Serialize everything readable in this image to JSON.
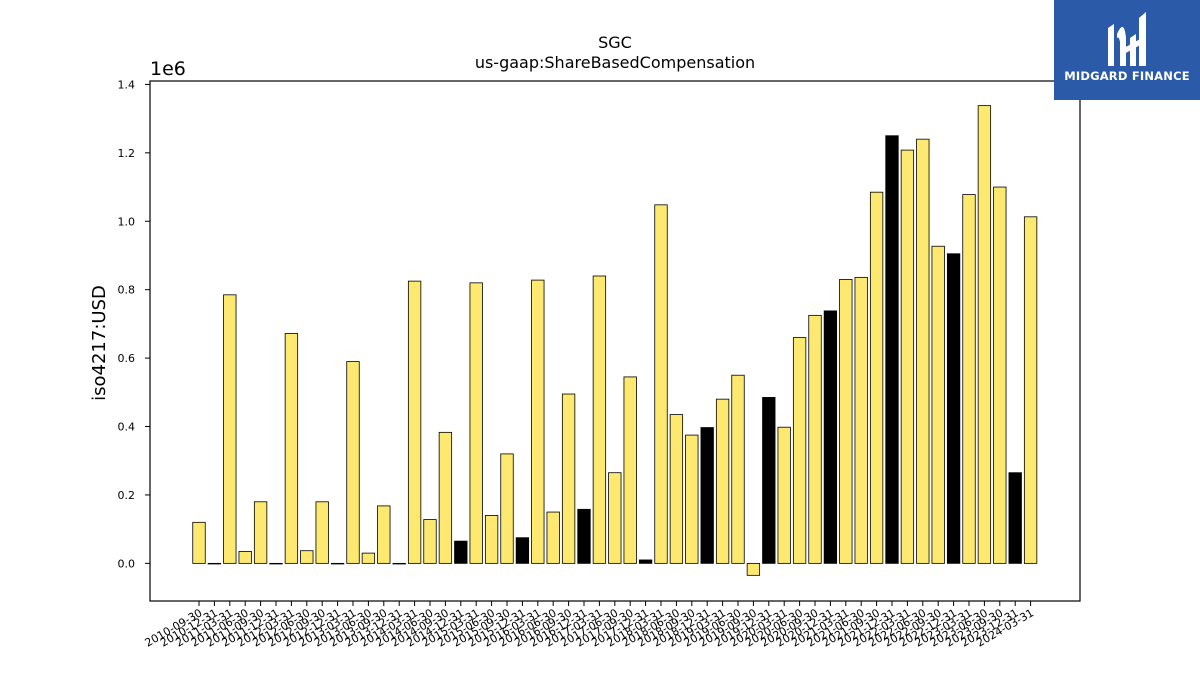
{
  "brand": {
    "name": "MIDGARD FINANCE",
    "bg_color": "#2a5aa8"
  },
  "chart_data": {
    "type": "bar",
    "title": "SGC",
    "subtitle": "us-gaap:ShareBasedCompensation",
    "ylabel": "iso4217:USD",
    "xlabel": "",
    "y_offset_label": "1e6",
    "ylim": [
      -0.11,
      1.41
    ],
    "yticks": [
      "0.0",
      "0.2",
      "0.4",
      "0.6",
      "0.8",
      "1.0",
      "1.2",
      "1.4"
    ],
    "ytick_values": [
      0.0,
      0.2,
      0.4,
      0.6,
      0.8,
      1.0,
      1.2,
      1.4
    ],
    "y_scale_multiplier": 1000000,
    "grid": false,
    "colors": {
      "annual": "#fde970",
      "quarterly": "#000000",
      "edge": "#000000"
    },
    "categories": [
      "2010-09-30",
      "2010-12-31",
      "2011-03-31",
      "2011-06-30",
      "2011-09-30",
      "2011-12-31",
      "2012-03-31",
      "2012-06-30",
      "2012-09-30",
      "2012-12-31",
      "2013-03-31",
      "2013-06-30",
      "2013-09-30",
      "2013-12-31",
      "2014-03-31",
      "2014-06-30",
      "2014-09-30",
      "2014-12-31",
      "2015-03-31",
      "2015-06-30",
      "2015-09-30",
      "2015-12-31",
      "2016-03-31",
      "2016-06-30",
      "2016-09-30",
      "2016-12-31",
      "2017-03-31",
      "2017-06-30",
      "2017-09-30",
      "2017-12-31",
      "2018-03-31",
      "2018-06-30",
      "2018-09-30",
      "2018-12-31",
      "2019-03-31",
      "2019-06-30",
      "2019-09-30",
      "2019-12-31",
      "2020-03-31",
      "2020-06-30",
      "2020-09-30",
      "2020-12-31",
      "2021-03-31",
      "2021-06-30",
      "2021-09-30",
      "2021-12-31",
      "2022-03-31",
      "2022-06-30",
      "2022-09-30",
      "2022-12-31",
      "2023-03-31",
      "2023-06-30",
      "2023-09-30",
      "2023-12-31",
      "2024-03-31"
    ],
    "values": [
      0.12,
      0.0,
      0.785,
      0.035,
      0.18,
      0.0,
      0.672,
      0.037,
      0.18,
      0.0,
      0.59,
      0.03,
      0.168,
      0.0,
      0.825,
      0.128,
      0.383,
      0.065,
      0.82,
      0.14,
      0.32,
      0.075,
      0.828,
      0.15,
      0.495,
      0.158,
      0.84,
      0.265,
      0.545,
      0.01,
      1.048,
      0.435,
      0.375,
      0.397,
      0.48,
      0.55,
      -0.035,
      0.485,
      0.398,
      0.66,
      0.725,
      0.738,
      0.83,
      0.836,
      1.085,
      1.25,
      1.208,
      1.24,
      0.927,
      0.905,
      1.078,
      1.338,
      1.1,
      0.265,
      1.013
    ],
    "bar_kind": [
      "annual",
      "annual",
      "annual",
      "annual",
      "annual",
      "annual",
      "annual",
      "annual",
      "annual",
      "annual",
      "annual",
      "annual",
      "annual",
      "annual",
      "annual",
      "annual",
      "annual",
      "quarterly",
      "annual",
      "annual",
      "annual",
      "quarterly",
      "annual",
      "annual",
      "annual",
      "quarterly",
      "annual",
      "annual",
      "annual",
      "quarterly",
      "annual",
      "annual",
      "annual",
      "quarterly",
      "annual",
      "annual",
      "annual",
      "quarterly",
      "annual",
      "annual",
      "annual",
      "quarterly",
      "annual",
      "annual",
      "annual",
      "quarterly",
      "annual",
      "annual",
      "annual",
      "quarterly",
      "annual",
      "annual",
      "annual",
      "quarterly",
      "annual"
    ]
  }
}
